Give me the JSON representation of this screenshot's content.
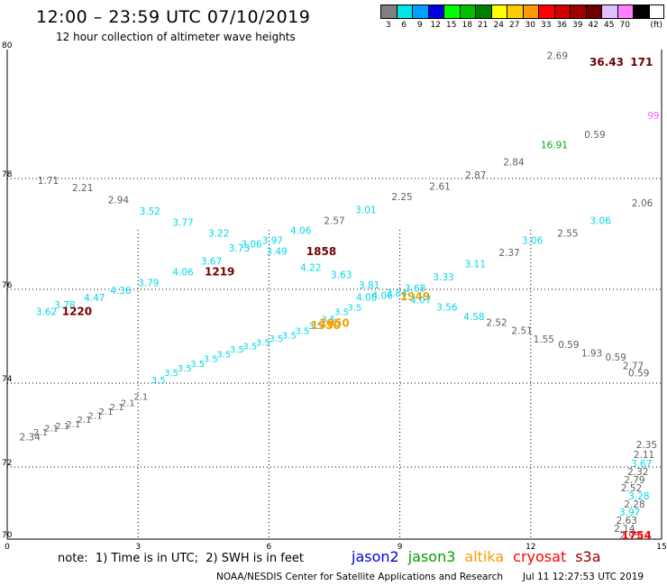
{
  "header": {
    "title": "12:00 – 23:59 UTC 07/10/2019",
    "subtitle": "12 hour collection of altimeter wave heights"
  },
  "color_scale": {
    "unit": "(ft)",
    "bins": [
      {
        "label": "3",
        "color": "#7f7f7f"
      },
      {
        "label": "6",
        "color": "#00e5e5"
      },
      {
        "label": "9",
        "color": "#00a0ff"
      },
      {
        "label": "12",
        "color": "#0000e0"
      },
      {
        "label": "15",
        "color": "#00ff00"
      },
      {
        "label": "18",
        "color": "#00c000"
      },
      {
        "label": "21",
        "color": "#008000"
      },
      {
        "label": "24",
        "color": "#ffff00"
      },
      {
        "label": "27",
        "color": "#ffcc00"
      },
      {
        "label": "30",
        "color": "#ff9900"
      },
      {
        "label": "33",
        "color": "#ff0000"
      },
      {
        "label": "36",
        "color": "#d00000"
      },
      {
        "label": "39",
        "color": "#a00000"
      },
      {
        "label": "42",
        "color": "#700000"
      },
      {
        "label": "45",
        "color": "#e0c0ff"
      },
      {
        "label": "70",
        "color": "#ff80ff"
      },
      {
        "label": "",
        "color": "#000000"
      }
    ]
  },
  "chart_data": {
    "type": "scatter",
    "x_ticks": [
      "0",
      "3",
      "6",
      "9",
      "12",
      "15"
    ],
    "y_ticks": [
      "70",
      "72",
      "74",
      "76",
      "78",
      "80"
    ],
    "xlim": [
      0,
      15
    ],
    "ylim": [
      70,
      80
    ],
    "grid": "dotted",
    "label_colors": {
      "gray": "#606060",
      "cyan": "#00d8e8",
      "green": "#00b000",
      "orange": "#f0a000",
      "darkred": "#700000",
      "red": "#ff0000",
      "pink": "#ff60ff"
    },
    "points": [
      {
        "x": 12.61,
        "y": 79.85,
        "t": "2.69",
        "c": "gray"
      },
      {
        "x": 13.74,
        "y": 79.75,
        "t": "36.43",
        "c": "darkred"
      },
      {
        "x": 14.8,
        "y": 79.75,
        "t": "171",
        "c": "darkred"
      },
      {
        "x": 14.95,
        "y": 78.92,
        "t": "99",
        "c": "pink"
      },
      {
        "x": 13.47,
        "y": 78.63,
        "t": "0.59",
        "c": "gray"
      },
      {
        "x": 12.54,
        "y": 78.47,
        "t": "16.91",
        "c": "green"
      },
      {
        "x": 11.61,
        "y": 78.2,
        "t": "2.84",
        "c": "gray"
      },
      {
        "x": 10.74,
        "y": 78.0,
        "t": "2.87",
        "c": "gray"
      },
      {
        "x": 0.94,
        "y": 77.9,
        "t": "1.71",
        "c": "gray"
      },
      {
        "x": 1.73,
        "y": 77.77,
        "t": "2.21",
        "c": "gray"
      },
      {
        "x": 9.92,
        "y": 77.8,
        "t": "2.61",
        "c": "gray"
      },
      {
        "x": 2.55,
        "y": 77.55,
        "t": "2.94",
        "c": "gray"
      },
      {
        "x": 9.05,
        "y": 77.61,
        "t": "2.25",
        "c": "gray"
      },
      {
        "x": 14.8,
        "y": 77.5,
        "t": "2.06",
        "c": "gray"
      },
      {
        "x": 3.27,
        "y": 77.35,
        "t": "3.52",
        "c": "cyan"
      },
      {
        "x": 8.22,
        "y": 77.37,
        "t": "3.01",
        "c": "cyan"
      },
      {
        "x": 7.5,
        "y": 77.18,
        "t": "2.57",
        "c": "gray"
      },
      {
        "x": 4.03,
        "y": 77.15,
        "t": "3.77",
        "c": "cyan"
      },
      {
        "x": 13.6,
        "y": 77.18,
        "t": "3.06",
        "c": "cyan"
      },
      {
        "x": 6.73,
        "y": 77.0,
        "t": "4.06",
        "c": "cyan"
      },
      {
        "x": 4.85,
        "y": 76.95,
        "t": "3.22",
        "c": "cyan"
      },
      {
        "x": 12.85,
        "y": 76.95,
        "t": "2.55",
        "c": "gray"
      },
      {
        "x": 5.6,
        "y": 76.76,
        "t": "3.06",
        "c": "cyan"
      },
      {
        "x": 6.08,
        "y": 76.82,
        "t": "3.97",
        "c": "cyan"
      },
      {
        "x": 12.04,
        "y": 76.82,
        "t": "3.06",
        "c": "cyan"
      },
      {
        "x": 5.32,
        "y": 76.68,
        "t": "3.73",
        "c": "cyan"
      },
      {
        "x": 6.18,
        "y": 76.63,
        "t": "3.49",
        "c": "cyan"
      },
      {
        "x": 7.2,
        "y": 76.62,
        "t": "1858",
        "c": "darkred"
      },
      {
        "x": 11.51,
        "y": 76.6,
        "t": "2.37",
        "c": "gray"
      },
      {
        "x": 4.68,
        "y": 76.45,
        "t": "3.67",
        "c": "cyan"
      },
      {
        "x": 6.96,
        "y": 76.33,
        "t": "4.22",
        "c": "cyan"
      },
      {
        "x": 10.73,
        "y": 76.4,
        "t": "3.11",
        "c": "cyan"
      },
      {
        "x": 4.03,
        "y": 76.25,
        "t": "4.06",
        "c": "cyan"
      },
      {
        "x": 4.87,
        "y": 76.25,
        "t": "1219",
        "c": "darkred"
      },
      {
        "x": 7.66,
        "y": 76.2,
        "t": "3.63",
        "c": "cyan"
      },
      {
        "x": 10.0,
        "y": 76.16,
        "t": "3.33",
        "c": "cyan"
      },
      {
        "x": 3.24,
        "y": 76.06,
        "t": "3.79",
        "c": "cyan"
      },
      {
        "x": 8.3,
        "y": 76.02,
        "t": "3.81",
        "c": "cyan"
      },
      {
        "x": 9.35,
        "y": 75.95,
        "t": "3.68",
        "c": "cyan"
      },
      {
        "x": 2.6,
        "y": 75.9,
        "t": "4.36",
        "c": "cyan"
      },
      {
        "x": 8.93,
        "y": 75.85,
        "t": "3.84",
        "c": "cyan"
      },
      {
        "x": 8.6,
        "y": 75.8,
        "t": "4.06",
        "c": "cyan"
      },
      {
        "x": 9.35,
        "y": 75.77,
        "t": "1949",
        "c": "orange"
      },
      {
        "x": 2.0,
        "y": 75.75,
        "t": "4.47",
        "c": "cyan"
      },
      {
        "x": 8.24,
        "y": 75.76,
        "t": "4.08",
        "c": "cyan"
      },
      {
        "x": 9.48,
        "y": 75.7,
        "t": "4.07",
        "c": "cyan"
      },
      {
        "x": 1.32,
        "y": 75.6,
        "t": "3.78",
        "c": "cyan"
      },
      {
        "x": 10.08,
        "y": 75.55,
        "t": "3.56",
        "c": "cyan"
      },
      {
        "x": 0.9,
        "y": 75.45,
        "t": "3.62",
        "c": "cyan"
      },
      {
        "x": 1.6,
        "y": 75.45,
        "t": "1220",
        "c": "darkred"
      },
      {
        "x": 10.7,
        "y": 75.35,
        "t": "4.58",
        "c": "cyan"
      },
      {
        "x": 7.5,
        "y": 75.2,
        "t": "1950",
        "c": "orange"
      },
      {
        "x": 7.3,
        "y": 75.15,
        "t": "1950",
        "c": "orange"
      },
      {
        "x": 11.22,
        "y": 75.22,
        "t": "2.52",
        "c": "gray"
      },
      {
        "x": 11.8,
        "y": 75.05,
        "t": "2.51",
        "c": "gray"
      },
      {
        "x": 12.3,
        "y": 74.87,
        "t": "1.55",
        "c": "gray"
      },
      {
        "x": 12.87,
        "y": 74.75,
        "t": "0.59",
        "c": "gray"
      },
      {
        "x": 13.4,
        "y": 74.57,
        "t": "1.93",
        "c": "gray"
      },
      {
        "x": 13.95,
        "y": 74.48,
        "t": "0.59",
        "c": "gray"
      },
      {
        "x": 14.35,
        "y": 74.3,
        "t": "2.77",
        "c": "gray"
      },
      {
        "x": 14.72,
        "y": 74.14,
        "t": "0.59",
        "c": "gray"
      },
      {
        "x": 0.52,
        "y": 72.63,
        "t": "2.34",
        "c": "gray"
      },
      {
        "x": 14.27,
        "y": 70.0,
        "t": "2.95",
        "c": "gray"
      },
      {
        "x": 14.77,
        "y": 70.0,
        "t": "1754",
        "c": "red"
      },
      {
        "x": 14.15,
        "y": 70.2,
        "t": "2.14",
        "c": "gray"
      },
      {
        "x": 14.2,
        "y": 70.42,
        "t": "2.63",
        "c": "gray"
      },
      {
        "x": 14.27,
        "y": 70.65,
        "t": "3.97",
        "c": "cyan"
      },
      {
        "x": 14.38,
        "y": 70.88,
        "t": "2.28",
        "c": "gray"
      },
      {
        "x": 14.48,
        "y": 71.1,
        "t": "3.28",
        "c": "cyan"
      },
      {
        "x": 14.55,
        "y": 71.32,
        "t": "2.52",
        "c": "gray"
      },
      {
        "x": 14.62,
        "y": 71.55,
        "t": "2.79",
        "c": "gray"
      },
      {
        "x": 14.7,
        "y": 71.77,
        "t": "2.32",
        "c": "gray"
      },
      {
        "x": 14.78,
        "y": 72.0,
        "t": "3.67",
        "c": "cyan"
      },
      {
        "x": 14.84,
        "y": 72.22,
        "t": "2.11",
        "c": "gray"
      },
      {
        "x": 14.9,
        "y": 72.45,
        "t": "2.35",
        "c": "gray"
      }
    ]
  },
  "notes": {
    "note_text": "note:  1) Time is in UTC;  2) SWH is in feet"
  },
  "missions": [
    {
      "name": "jason2",
      "color": "#0000e0"
    },
    {
      "name": "jason3",
      "color": "#00a000"
    },
    {
      "name": "altika",
      "color": "#ff9900"
    },
    {
      "name": "cryosat",
      "color": "#ff0000"
    },
    {
      "name": "s3a",
      "color": "#a00000"
    }
  ],
  "footer": {
    "credit": "NOAA/NESDIS Center for Satellite Applications and Research",
    "timestamp": "Jul 11 12:27:53 UTC 2019"
  }
}
